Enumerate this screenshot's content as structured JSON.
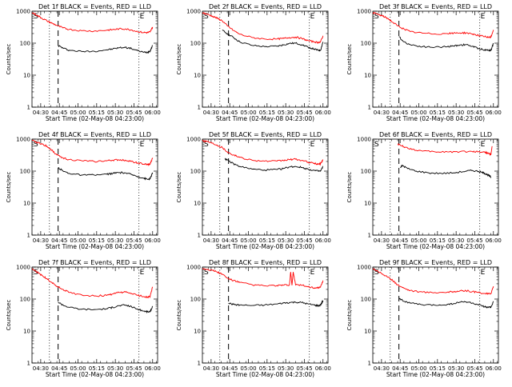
{
  "colors": {
    "events": "#000000",
    "lld": "#ff0000",
    "axes": "#000000",
    "background": "#ffffff"
  },
  "shared": {
    "type": "line",
    "xlabel": "Start Time (02-May-08 04:23:00)",
    "ylabel": "Counts/sec",
    "y_scale": "log",
    "ylim": [
      1,
      1000
    ],
    "y_ticks": [
      1,
      10,
      100,
      1000
    ],
    "y_tick_labels": [
      "1",
      "10",
      "100",
      "1000"
    ],
    "xlim_minutes": [
      0,
      101
    ],
    "x_tick_minutes": [
      7,
      22,
      37,
      52,
      67,
      82,
      97
    ],
    "x_tick_labels": [
      "04:30",
      "04:45",
      "05:00",
      "05:15",
      "05:30",
      "05:45",
      "06:00"
    ],
    "marker_S": "S",
    "marker_E": "E",
    "grid": false
  },
  "chart_data": [
    {
      "title": "Det 1f BLACK = Events, RED = LLD",
      "series": [
        {
          "name": "Events",
          "color": "#000000",
          "x": [
            20,
            21,
            25,
            30,
            40,
            50,
            60,
            65,
            70,
            75,
            80,
            85,
            90,
            93,
            95,
            97
          ],
          "y": [
            null,
            85,
            70,
            60,
            55,
            56,
            62,
            66,
            72,
            74,
            68,
            58,
            52,
            52,
            58,
            85
          ]
        },
        {
          "name": "LLD",
          "color": "#ff0000",
          "x": [
            0,
            4,
            8,
            12,
            16,
            20,
            25,
            30,
            40,
            50,
            60,
            65,
            70,
            75,
            80,
            85,
            90,
            93,
            95,
            97
          ],
          "y": [
            900,
            750,
            600,
            500,
            420,
            360,
            300,
            270,
            245,
            240,
            255,
            265,
            280,
            280,
            260,
            230,
            215,
            215,
            225,
            320
          ]
        }
      ]
    },
    {
      "title": "Det 2f BLACK = Events, RED = LLD",
      "series": [
        {
          "name": "Events",
          "color": "#000000",
          "x": [
            16,
            20,
            25,
            30,
            40,
            50,
            60,
            65,
            70,
            75,
            80,
            85,
            90,
            93,
            95,
            97
          ],
          "y": [
            250,
            200,
            150,
            110,
            85,
            78,
            80,
            88,
            98,
            100,
            90,
            75,
            65,
            60,
            60,
            110
          ]
        },
        {
          "name": "LLD",
          "color": "#ff0000",
          "x": [
            0,
            4,
            8,
            12,
            16,
            20,
            25,
            30,
            40,
            50,
            60,
            65,
            70,
            75,
            80,
            85,
            90,
            93,
            95,
            97
          ],
          "y": [
            900,
            800,
            700,
            600,
            500,
            350,
            250,
            190,
            150,
            135,
            135,
            140,
            150,
            155,
            140,
            120,
            110,
            105,
            110,
            170
          ]
        }
      ]
    },
    {
      "title": "Det 3f BLACK = Events, RED = LLD",
      "series": [
        {
          "name": "Events",
          "color": "#000000",
          "x": [
            20,
            21,
            25,
            30,
            40,
            50,
            60,
            65,
            70,
            75,
            80,
            85,
            90,
            93,
            95,
            97
          ],
          "y": [
            null,
            160,
            110,
            90,
            78,
            75,
            78,
            82,
            88,
            90,
            80,
            68,
            62,
            60,
            60,
            100
          ]
        },
        {
          "name": "LLD",
          "color": "#ff0000",
          "x": [
            0,
            4,
            8,
            12,
            16,
            20,
            25,
            30,
            40,
            50,
            60,
            65,
            70,
            75,
            80,
            85,
            90,
            93,
            95,
            97
          ],
          "y": [
            900,
            800,
            700,
            600,
            450,
            350,
            280,
            230,
            205,
            195,
            200,
            205,
            210,
            210,
            195,
            175,
            160,
            150,
            155,
            260
          ]
        }
      ]
    },
    {
      "title": "Det 4f BLACK = Events, RED = LLD",
      "series": [
        {
          "name": "Events",
          "color": "#000000",
          "x": [
            20,
            21,
            25,
            30,
            40,
            50,
            60,
            65,
            70,
            75,
            80,
            85,
            90,
            93,
            95,
            97
          ],
          "y": [
            null,
            130,
            100,
            85,
            75,
            75,
            80,
            85,
            90,
            88,
            78,
            68,
            60,
            55,
            58,
            90
          ]
        },
        {
          "name": "LLD",
          "color": "#ff0000",
          "x": [
            0,
            4,
            8,
            12,
            16,
            20,
            25,
            30,
            40,
            50,
            60,
            65,
            70,
            75,
            80,
            85,
            90,
            93,
            95,
            97
          ],
          "y": [
            900,
            800,
            700,
            600,
            450,
            320,
            260,
            230,
            210,
            200,
            210,
            220,
            225,
            220,
            200,
            180,
            165,
            160,
            165,
            260
          ]
        }
      ]
    },
    {
      "title": "Det 5f BLACK = Events, RED = LLD",
      "series": [
        {
          "name": "Events",
          "color": "#000000",
          "x": [
            18,
            20,
            25,
            30,
            40,
            50,
            60,
            65,
            70,
            75,
            80,
            85,
            90,
            93,
            95,
            97
          ],
          "y": [
            250,
            220,
            170,
            140,
            115,
            108,
            112,
            120,
            135,
            140,
            130,
            115,
            105,
            100,
            100,
            140
          ]
        },
        {
          "name": "LLD",
          "color": "#ff0000",
          "x": [
            0,
            4,
            8,
            12,
            16,
            20,
            25,
            30,
            40,
            50,
            60,
            65,
            70,
            75,
            80,
            85,
            90,
            93,
            95,
            97
          ],
          "y": [
            900,
            850,
            750,
            650,
            550,
            400,
            320,
            270,
            220,
            205,
            205,
            215,
            230,
            235,
            215,
            190,
            175,
            165,
            170,
            230
          ]
        }
      ]
    },
    {
      "title": "Det 6f BLACK = Events, RED = LLD",
      "series": [
        {
          "name": "Events",
          "color": "#000000",
          "x": [
            22,
            24,
            28,
            35,
            45,
            55,
            65,
            75,
            80,
            85,
            88,
            90,
            92,
            94,
            95
          ],
          "y": [
            130,
            150,
            120,
            100,
            88,
            85,
            88,
            100,
            105,
            98,
            90,
            85,
            78,
            70,
            65
          ]
        },
        {
          "name": "LLD",
          "color": "#ff0000",
          "x": [
            20,
            22,
            26,
            32,
            40,
            50,
            60,
            70,
            80,
            85,
            90,
            92,
            94,
            95,
            96
          ],
          "y": [
            700,
            650,
            560,
            480,
            420,
            400,
            400,
            405,
            410,
            405,
            390,
            370,
            340,
            330,
            600
          ]
        }
      ]
    },
    {
      "title": "Det 7f BLACK = Events, RED = LLD",
      "series": [
        {
          "name": "Events",
          "color": "#000000",
          "x": [
            20,
            21,
            25,
            30,
            40,
            50,
            60,
            65,
            70,
            75,
            80,
            85,
            90,
            93,
            95,
            97
          ],
          "y": [
            null,
            80,
            65,
            55,
            48,
            47,
            50,
            55,
            62,
            65,
            58,
            48,
            42,
            40,
            40,
            60
          ]
        },
        {
          "name": "LLD",
          "color": "#ff0000",
          "x": [
            0,
            4,
            8,
            12,
            16,
            20,
            25,
            30,
            40,
            50,
            60,
            65,
            70,
            75,
            80,
            85,
            90,
            93,
            95,
            97
          ],
          "y": [
            900,
            700,
            550,
            430,
            330,
            250,
            200,
            160,
            135,
            125,
            130,
            145,
            160,
            165,
            150,
            130,
            120,
            115,
            120,
            240
          ]
        }
      ]
    },
    {
      "title": "Det 8f BLACK = Events, RED = LLD",
      "series": [
        {
          "name": "Events",
          "color": "#000000",
          "x": [
            20,
            21,
            25,
            30,
            40,
            50,
            60,
            65,
            70,
            75,
            80,
            85,
            90,
            93,
            95,
            97
          ],
          "y": [
            null,
            75,
            68,
            65,
            63,
            65,
            70,
            75,
            78,
            80,
            78,
            70,
            65,
            62,
            65,
            90
          ]
        },
        {
          "name": "LLD",
          "color": "#ff0000",
          "x": [
            0,
            4,
            8,
            12,
            16,
            20,
            25,
            30,
            40,
            50,
            60,
            65,
            70,
            71,
            72,
            73,
            75,
            80,
            85,
            90,
            93,
            95,
            97
          ],
          "y": [
            900,
            850,
            800,
            700,
            600,
            450,
            380,
            330,
            280,
            260,
            265,
            270,
            275,
            700,
            270,
            700,
            275,
            270,
            240,
            225,
            220,
            235,
            380
          ]
        }
      ]
    },
    {
      "title": "Det 9f BLACK = Events, RED = LLD",
      "series": [
        {
          "name": "Events",
          "color": "#000000",
          "x": [
            20,
            21,
            25,
            30,
            40,
            50,
            60,
            65,
            70,
            75,
            80,
            85,
            90,
            93,
            95,
            97
          ],
          "y": [
            null,
            110,
            85,
            75,
            66,
            64,
            68,
            72,
            80,
            82,
            75,
            65,
            58,
            55,
            55,
            85
          ]
        },
        {
          "name": "LLD",
          "color": "#ff0000",
          "x": [
            0,
            4,
            8,
            12,
            16,
            20,
            25,
            30,
            40,
            50,
            60,
            65,
            70,
            75,
            80,
            85,
            90,
            93,
            95,
            97
          ],
          "y": [
            900,
            750,
            600,
            480,
            380,
            280,
            220,
            185,
            165,
            160,
            165,
            170,
            180,
            180,
            170,
            160,
            150,
            145,
            150,
            250
          ]
        }
      ]
    }
  ]
}
